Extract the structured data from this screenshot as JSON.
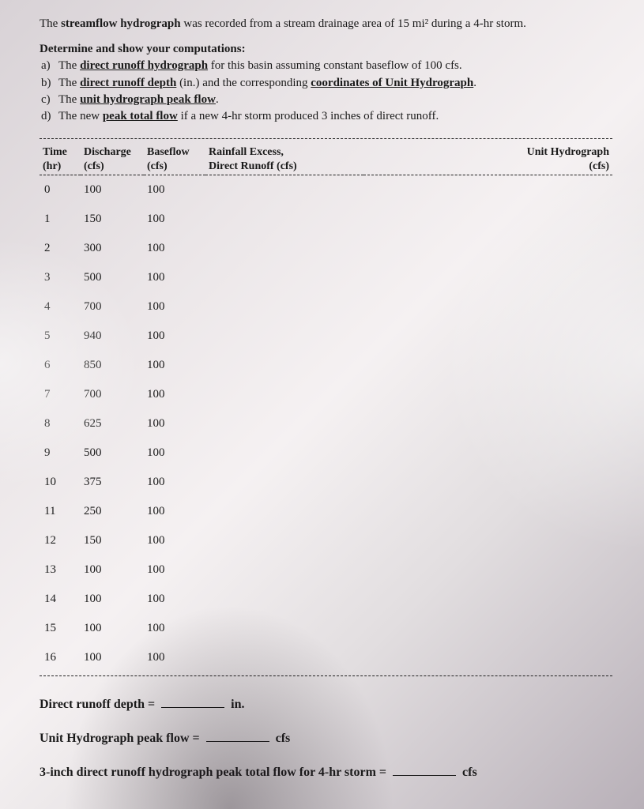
{
  "intro": {
    "line1_pre": "The ",
    "line1_bold": "streamflow hydrograph",
    "line1_post": " was recorded from a stream drainage area of 15 mi² during a 4-hr storm."
  },
  "det_heading": "Determine and show your computations:",
  "questions": {
    "a": {
      "letter": "a)",
      "pre": "The ",
      "u": "direct runoff hydrograph",
      "post": " for this basin assuming constant baseflow of 100 cfs."
    },
    "b": {
      "letter": "b)",
      "pre": "The ",
      "u": "direct runoff depth",
      "mid": " (in.) and the corresponding ",
      "u2": "coordinates of Unit Hydrograph",
      "post": "."
    },
    "c": {
      "letter": "c)",
      "pre": "The ",
      "u": "unit hydrograph peak flow",
      "post": "."
    },
    "d": {
      "letter": "d)",
      "pre": "The new ",
      "u": "peak total flow",
      "post": " if a new 4-hr storm produced 3 inches of direct runoff."
    }
  },
  "table": {
    "headers": {
      "time": "Time\n(hr)",
      "discharge": "Discharge\n(cfs)",
      "baseflow": "Baseflow\n(cfs)",
      "rainfall": "Rainfall Excess,\nDirect Runoff (cfs)",
      "uh": "Unit Hydrograph\n(cfs)"
    },
    "rows": [
      {
        "t": "0",
        "d": "100",
        "b": "100"
      },
      {
        "t": "1",
        "d": "150",
        "b": "100"
      },
      {
        "t": "2",
        "d": "300",
        "b": "100"
      },
      {
        "t": "3",
        "d": "500",
        "b": "100"
      },
      {
        "t": "4",
        "d": "700",
        "b": "100"
      },
      {
        "t": "5",
        "d": "940",
        "b": "100"
      },
      {
        "t": "6",
        "d": "850",
        "b": "100"
      },
      {
        "t": "7",
        "d": "700",
        "b": "100"
      },
      {
        "t": "8",
        "d": "625",
        "b": "100"
      },
      {
        "t": "9",
        "d": "500",
        "b": "100"
      },
      {
        "t": "10",
        "d": "375",
        "b": "100"
      },
      {
        "t": "11",
        "d": "250",
        "b": "100"
      },
      {
        "t": "12",
        "d": "150",
        "b": "100"
      },
      {
        "t": "13",
        "d": "100",
        "b": "100"
      },
      {
        "t": "14",
        "d": "100",
        "b": "100"
      },
      {
        "t": "15",
        "d": "100",
        "b": "100"
      },
      {
        "t": "16",
        "d": "100",
        "b": "100"
      }
    ]
  },
  "answers": {
    "depth_label": "Direct runoff depth =",
    "depth_unit": "in.",
    "peak_label": "Unit Hydrograph peak flow =",
    "peak_unit": "cfs",
    "three_in_label": "3-inch direct runoff hydrograph peak total flow for 4-hr storm  =",
    "three_in_unit": "cfs"
  }
}
